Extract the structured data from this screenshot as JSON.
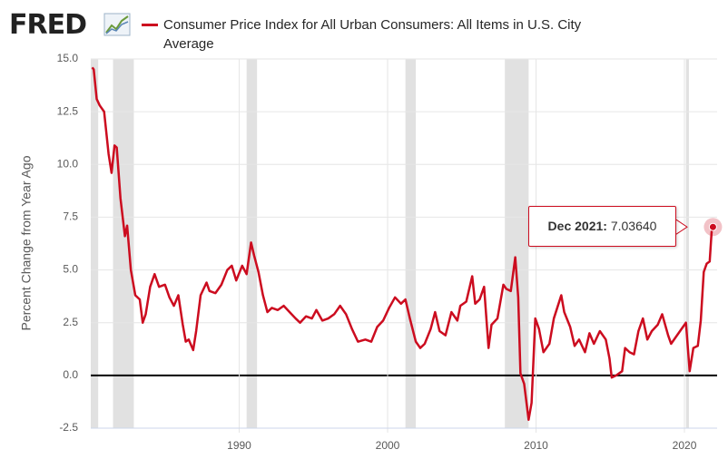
{
  "logo": "FRED",
  "chart_data": {
    "type": "line",
    "y_label": "Percent Change from Year Ago",
    "series": [
      {
        "name": "Consumer Price Index for All Urban Consumers: All Items in U.S. City Average",
        "color": "#cc0c1f",
        "x": [
          1980.1,
          1980.2,
          1980.4,
          1980.6,
          1980.9,
          1981.2,
          1981.4,
          1981.6,
          1981.75,
          1982.0,
          1982.3,
          1982.45,
          1982.7,
          1983.0,
          1983.3,
          1983.5,
          1983.7,
          1984.0,
          1984.3,
          1984.6,
          1985.0,
          1985.3,
          1985.6,
          1985.9,
          1986.2,
          1986.4,
          1986.6,
          1986.9,
          1987.1,
          1987.4,
          1987.8,
          1988.0,
          1988.4,
          1988.8,
          1989.2,
          1989.5,
          1989.8,
          1990.2,
          1990.5,
          1990.8,
          1991.0,
          1991.3,
          1991.6,
          1991.9,
          1992.2,
          1992.6,
          1993.0,
          1993.4,
          1993.8,
          1994.1,
          1994.5,
          1994.9,
          1995.2,
          1995.6,
          1996.0,
          1996.4,
          1996.8,
          1997.2,
          1997.6,
          1998.0,
          1998.5,
          1998.9,
          1999.3,
          1999.7,
          2000.1,
          2000.5,
          2000.9,
          2001.2,
          2001.5,
          2001.9,
          2002.2,
          2002.5,
          2002.9,
          2003.2,
          2003.5,
          2003.9,
          2004.3,
          2004.7,
          2004.9,
          2005.3,
          2005.7,
          2005.9,
          2006.2,
          2006.5,
          2006.8,
          2007.0,
          2007.4,
          2007.8,
          2008.0,
          2008.3,
          2008.6,
          2008.8,
          2008.95,
          2009.2,
          2009.5,
          2009.7,
          2009.95,
          2010.2,
          2010.5,
          2010.9,
          2011.2,
          2011.7,
          2011.9,
          2012.3,
          2012.6,
          2012.9,
          2013.3,
          2013.6,
          2013.9,
          2014.3,
          2014.7,
          2014.95,
          2015.1,
          2015.4,
          2015.8,
          2016.0,
          2016.3,
          2016.6,
          2016.9,
          2017.2,
          2017.5,
          2017.8,
          2018.2,
          2018.5,
          2018.9,
          2019.1,
          2019.4,
          2019.9,
          2020.1,
          2020.35,
          2020.6,
          2020.9,
          2021.1,
          2021.3,
          2021.5,
          2021.7,
          2021.83,
          2021.92
        ],
        "values": [
          14.6,
          14.5,
          13.1,
          12.8,
          12.5,
          10.5,
          9.6,
          10.9,
          10.8,
          8.4,
          6.6,
          7.1,
          5.0,
          3.8,
          3.6,
          2.5,
          2.9,
          4.2,
          4.8,
          4.2,
          4.3,
          3.7,
          3.3,
          3.8,
          2.4,
          1.6,
          1.7,
          1.2,
          2.1,
          3.8,
          4.4,
          4.0,
          3.9,
          4.3,
          5.0,
          5.2,
          4.5,
          5.2,
          4.8,
          6.3,
          5.7,
          4.9,
          3.8,
          3.0,
          3.2,
          3.1,
          3.3,
          3.0,
          2.7,
          2.5,
          2.8,
          2.7,
          3.1,
          2.6,
          2.7,
          2.9,
          3.3,
          2.9,
          2.2,
          1.6,
          1.7,
          1.6,
          2.3,
          2.6,
          3.2,
          3.7,
          3.4,
          3.6,
          2.7,
          1.6,
          1.3,
          1.5,
          2.2,
          3.0,
          2.1,
          1.9,
          3.0,
          2.6,
          3.3,
          3.5,
          4.7,
          3.4,
          3.6,
          4.2,
          1.3,
          2.4,
          2.7,
          4.3,
          4.1,
          4.0,
          5.6,
          3.7,
          0.1,
          -0.4,
          -2.1,
          -1.3,
          2.7,
          2.2,
          1.1,
          1.5,
          2.7,
          3.8,
          3.0,
          2.3,
          1.4,
          1.7,
          1.1,
          2.0,
          1.5,
          2.1,
          1.7,
          0.8,
          -0.1,
          0.0,
          0.2,
          1.3,
          1.1,
          1.0,
          2.1,
          2.7,
          1.7,
          2.1,
          2.4,
          2.9,
          1.9,
          1.5,
          1.8,
          2.3,
          2.5,
          0.2,
          1.3,
          1.4,
          2.6,
          4.9,
          5.3,
          5.4,
          6.8,
          7.0364
        ]
      }
    ],
    "recessions": [
      [
        1980.0,
        1980.5
      ],
      [
        1981.5,
        1982.9
      ],
      [
        1990.5,
        1991.2
      ],
      [
        2001.2,
        2001.9
      ],
      [
        2007.9,
        2009.5
      ],
      [
        2020.1,
        2020.3
      ]
    ],
    "tooltip": {
      "label": "Dec 2021:",
      "value": 7.0364,
      "value_label": "7.03640"
    },
    "xlim": [
      1980,
      2022.2
    ],
    "xticks": [
      1990,
      2000,
      2010,
      2020
    ],
    "ylim": [
      -2.5,
      15
    ],
    "yticks": [
      {
        "value": 15,
        "label": "15.0"
      },
      12.5,
      {
        "value": 10,
        "label": "10.0"
      },
      7.5,
      {
        "value": 5,
        "label": "5.0"
      },
      2.5,
      {
        "value": 0,
        "label": "0.0"
      },
      -2.5
    ],
    "grid": true
  }
}
